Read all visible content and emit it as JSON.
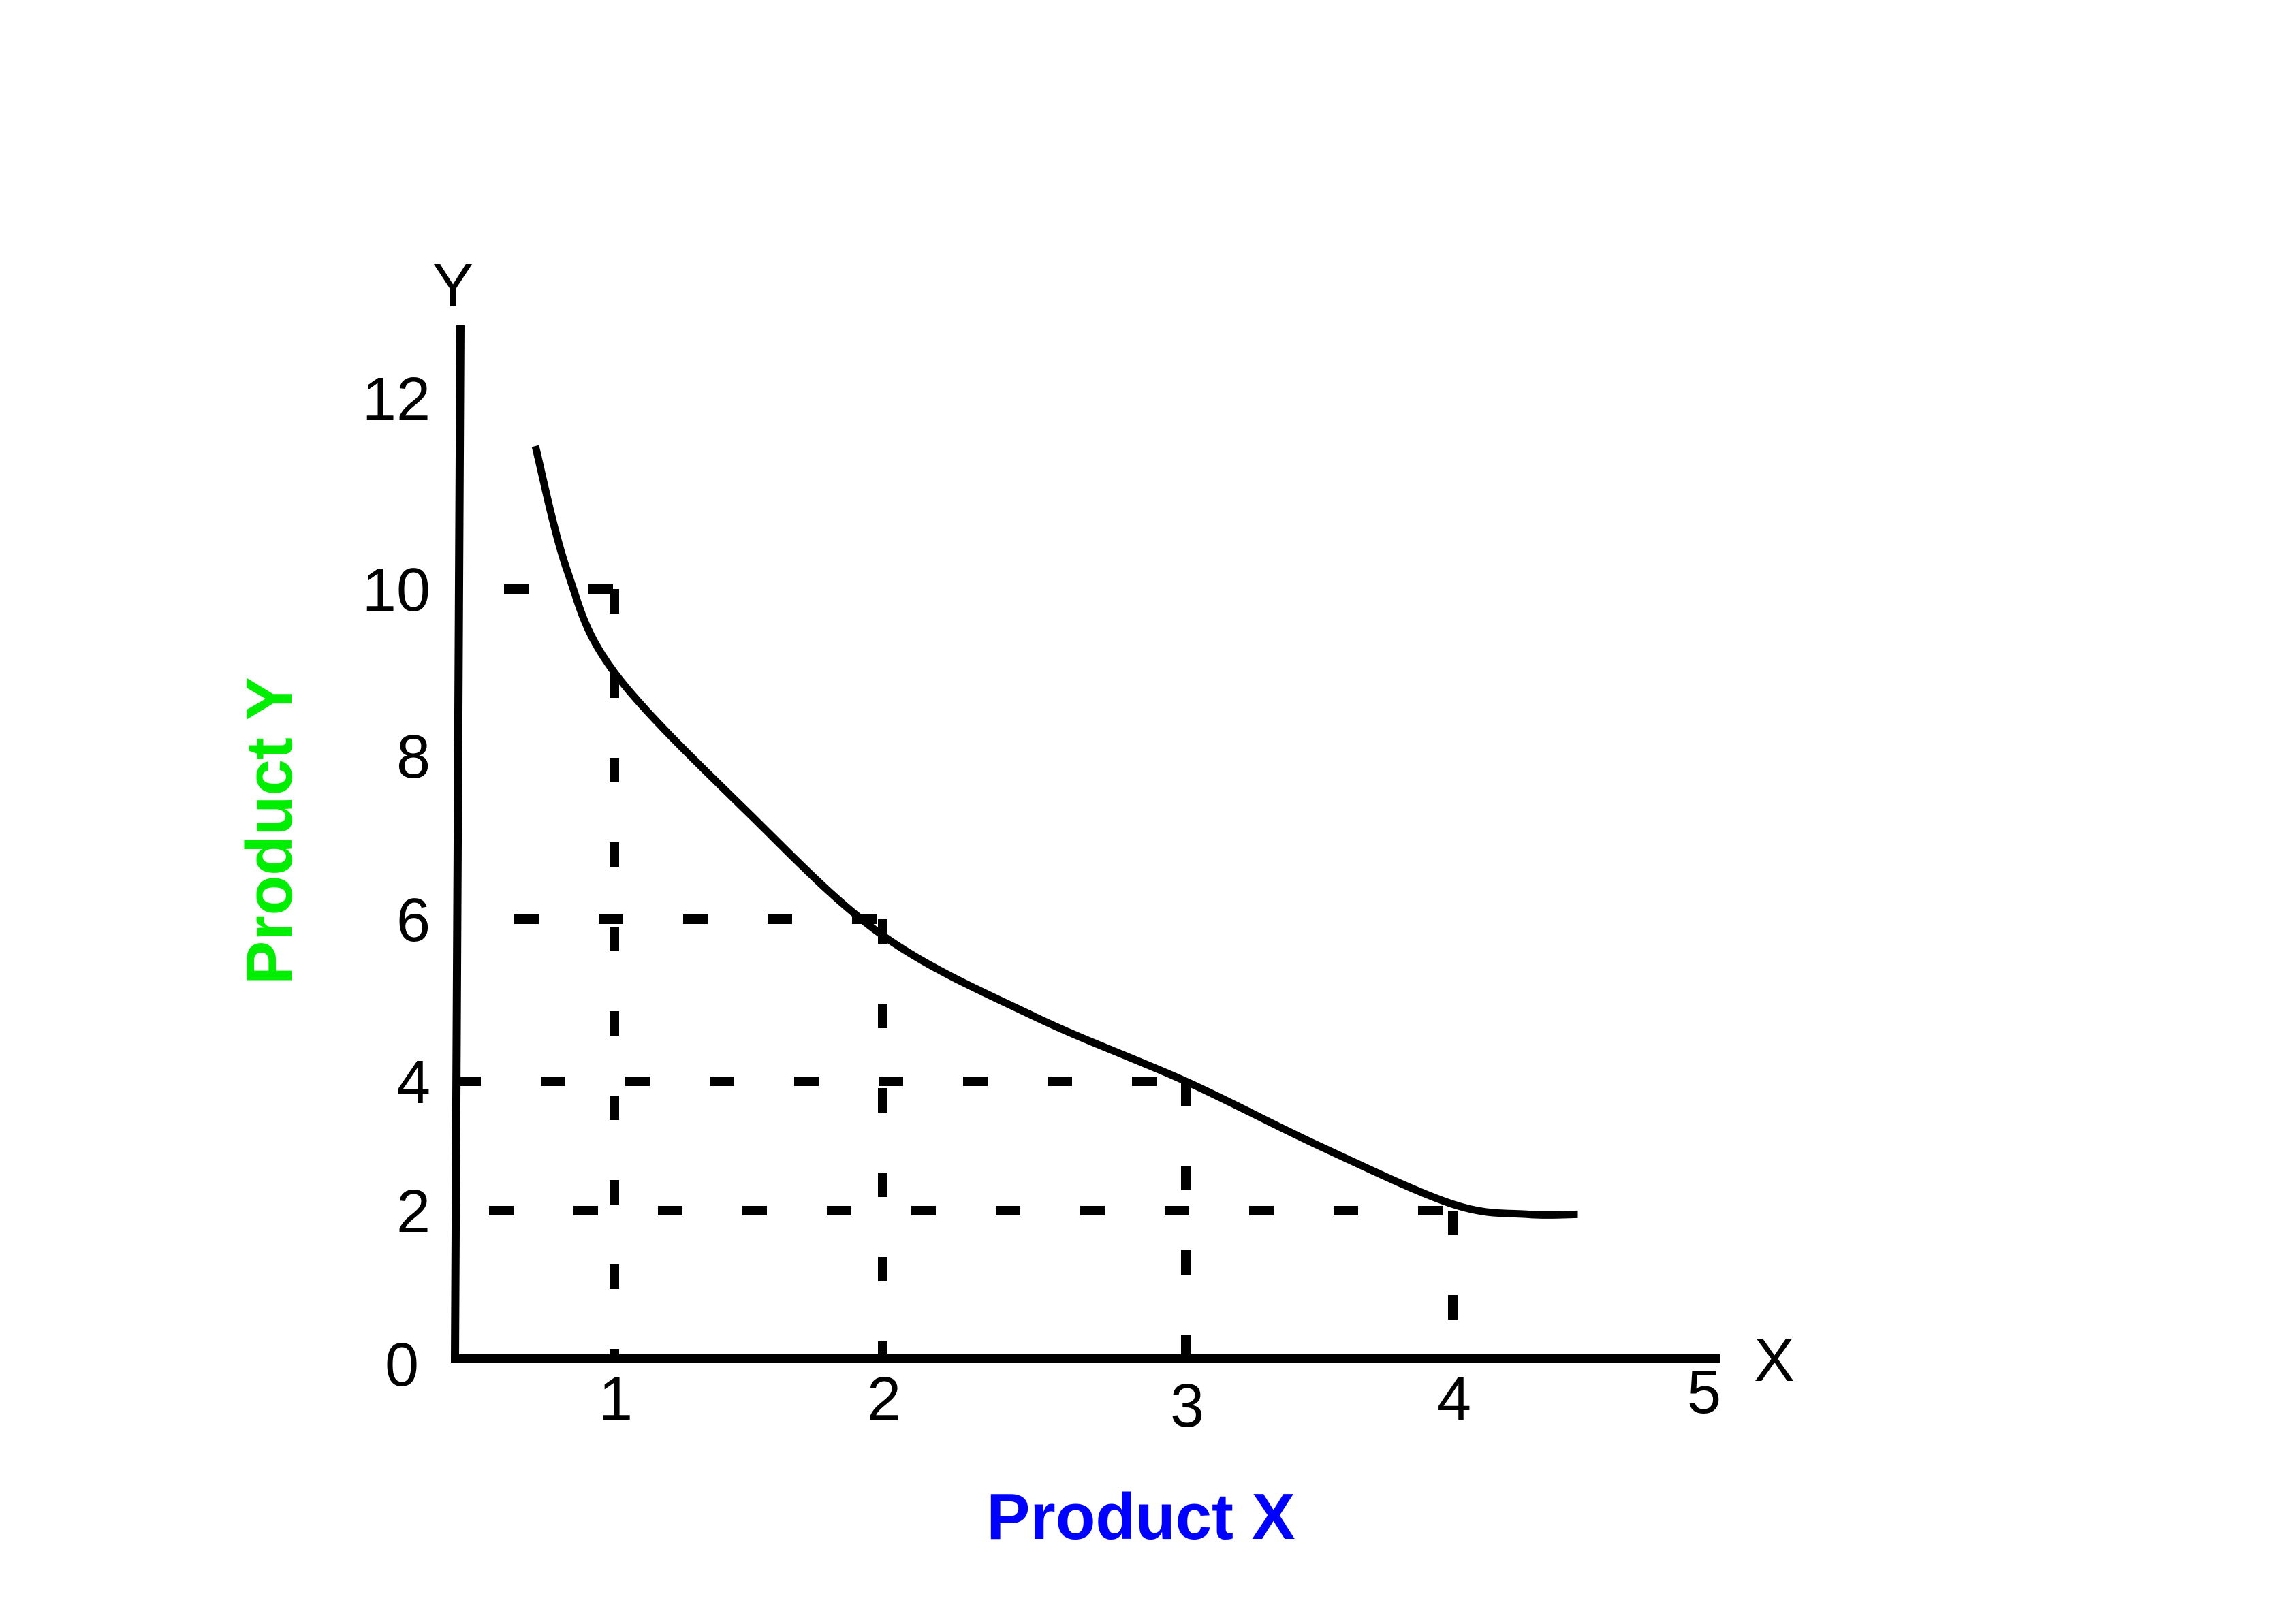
{
  "chart_data": {
    "type": "line",
    "title": "",
    "xlabel": "Product X",
    "ylabel": "Product Y",
    "x_axis_letter": "X",
    "y_axis_letter": "Y",
    "origin_label": "0",
    "xlim": [
      0,
      5
    ],
    "ylim": [
      0,
      12
    ],
    "x_ticks": [
      "1",
      "2",
      "3",
      "4",
      "5"
    ],
    "y_ticks": [
      "2",
      "4",
      "6",
      "8",
      "10",
      "12"
    ],
    "grid": false,
    "legend": "none",
    "series": [
      {
        "x": [
          0.5,
          0.7,
          1.0,
          1.5,
          2.0,
          2.5,
          3.0,
          3.5,
          4.0,
          4.3,
          4.5
        ],
        "values": [
          11.5,
          10.2,
          9.0,
          7.3,
          5.8,
          4.8,
          4.0,
          3.0,
          2.1,
          1.95,
          1.95
        ]
      }
    ],
    "reference_points": [
      {
        "x": 1,
        "y": 10
      },
      {
        "x": 2,
        "y": 6
      },
      {
        "x": 3,
        "y": 4
      },
      {
        "x": 4,
        "y": 2
      }
    ],
    "colors": {
      "xlabel": "#0000ff",
      "ylabel": "#00ee00",
      "line": "#000000"
    }
  }
}
